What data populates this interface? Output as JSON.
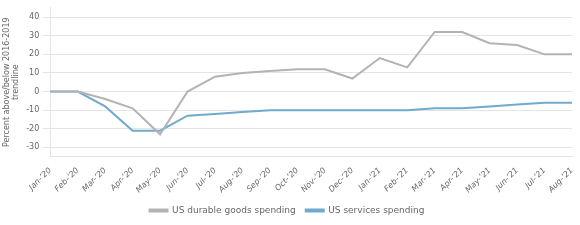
{
  "chart_data": {
    "type": "line",
    "ylabel": "Percent above/below 2016-2019\ntrendline",
    "categories": [
      "Jan-’20",
      "Feb-’20",
      "Mar-’20",
      "Apr-’20",
      "May-’20",
      "Jun-’20",
      "Jul-’20",
      "Aug-’20",
      "Sep-’20",
      "Oct-’20",
      "Nov-’20",
      "Dec-’20",
      "Jan-’21",
      "Feb-’21",
      "Mar-’21",
      "Apr-’21",
      "May-’21",
      "Jun-’21",
      "Jul-’21",
      "Aug-’21"
    ],
    "series": [
      {
        "name": "US durable goods spending",
        "color": "#b3b3b3",
        "values": [
          0,
          0,
          -4,
          -9,
          -23,
          0,
          8,
          10,
          11,
          12,
          12,
          7,
          18,
          13,
          32,
          32,
          26,
          25,
          20,
          20
        ]
      },
      {
        "name": "US services spending",
        "color": "#70aacd",
        "values": [
          0,
          0,
          -8,
          -21,
          -21,
          -13,
          -12,
          -11,
          -10,
          -10,
          -10,
          -10,
          -10,
          -10,
          -9,
          -9,
          -8,
          -7,
          -6,
          -6
        ]
      }
    ],
    "ylim": [
      -35,
      45
    ],
    "yticks": [
      -30,
      -20,
      -10,
      0,
      10,
      20,
      30,
      40
    ],
    "grid": true,
    "legend": "bottom"
  }
}
